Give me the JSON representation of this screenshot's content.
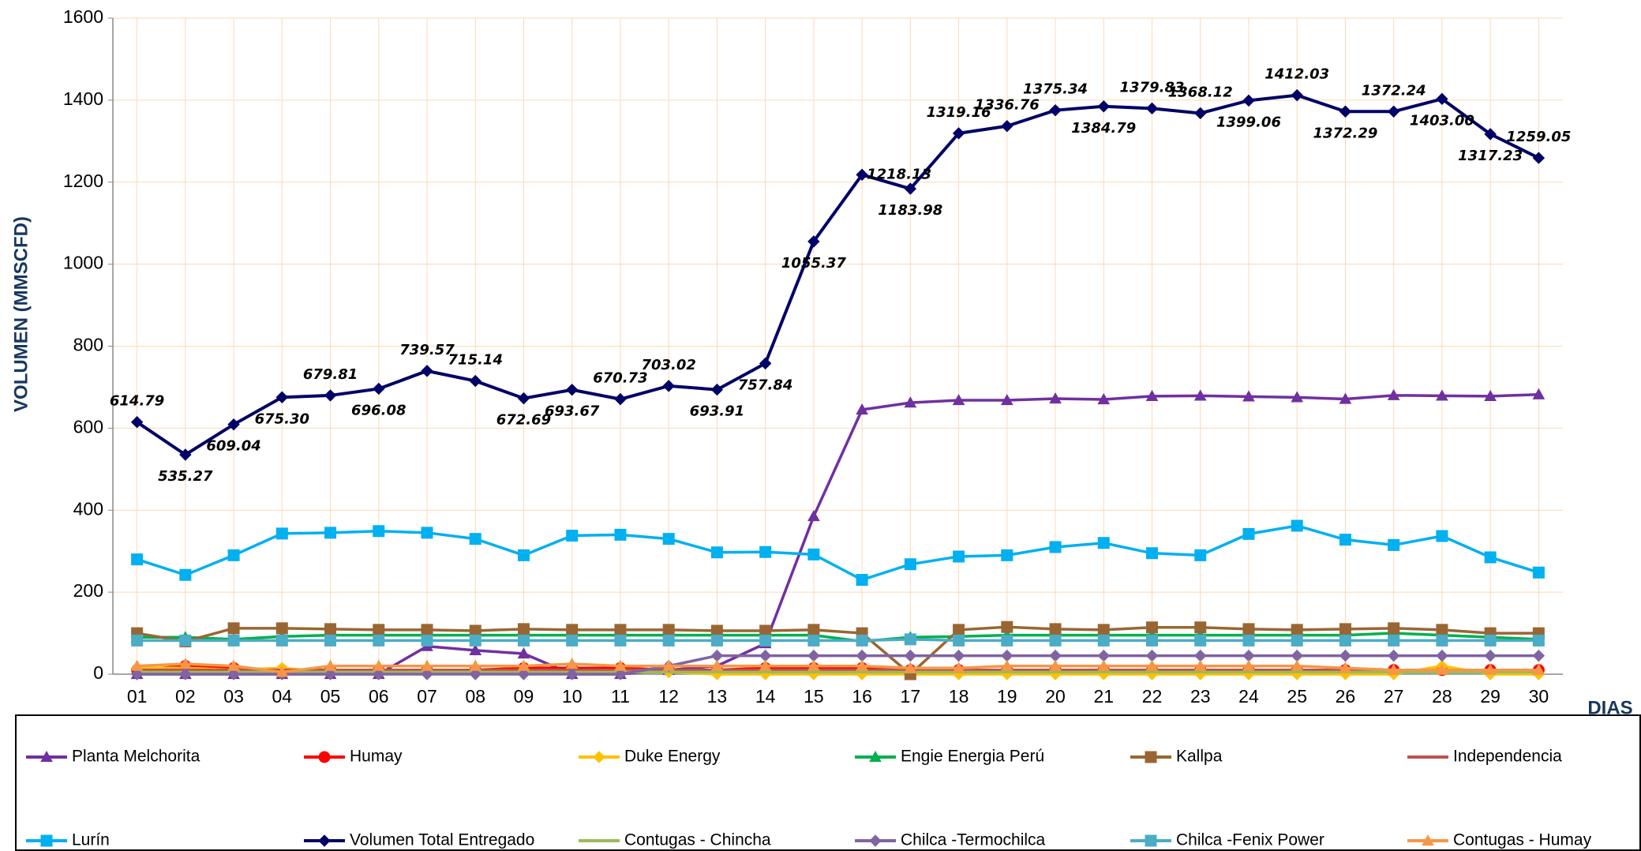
{
  "chart_data": {
    "type": "line",
    "y_label": "VOLUMEN (MMSCFD)",
    "x_label": "DIAS",
    "categories": [
      "01",
      "02",
      "03",
      "04",
      "05",
      "06",
      "07",
      "08",
      "09",
      "10",
      "11",
      "12",
      "13",
      "14",
      "15",
      "16",
      "17",
      "18",
      "19",
      "20",
      "21",
      "22",
      "23",
      "24",
      "25",
      "26",
      "27",
      "28",
      "29",
      "30"
    ],
    "ylim": [
      0,
      1600
    ],
    "yticks": [
      0,
      200,
      400,
      600,
      800,
      1000,
      1200,
      1400,
      1600
    ],
    "grid": true,
    "series": [
      {
        "name": "Planta Melchorita",
        "color": "#7030a0",
        "marker": "triangle",
        "values": [
          0,
          0,
          0,
          0,
          0,
          0,
          68,
          58,
          50,
          0,
          0,
          10,
          20,
          75,
          385,
          645,
          662,
          668,
          668,
          672,
          670,
          678,
          679,
          677,
          675,
          671,
          680,
          679,
          678,
          682
        ]
      },
      {
        "name": "Humay",
        "color": "#ff0000",
        "marker": "circle",
        "values": [
          10,
          20,
          15,
          10,
          10,
          10,
          10,
          10,
          15,
          15,
          15,
          10,
          10,
          15,
          15,
          15,
          10,
          10,
          10,
          10,
          10,
          10,
          10,
          10,
          10,
          10,
          10,
          10,
          10,
          10
        ]
      },
      {
        "name": "Duke Energy",
        "color": "#ffc000",
        "marker": "diamond",
        "values": [
          15,
          15,
          10,
          15,
          5,
          5,
          5,
          5,
          5,
          5,
          5,
          5,
          0,
          0,
          0,
          0,
          0,
          0,
          0,
          0,
          0,
          0,
          0,
          0,
          0,
          0,
          0,
          20,
          0,
          0
        ]
      },
      {
        "name": "Engie Energia Perú",
        "color": "#00b050",
        "marker": "triangle",
        "values": [
          90,
          90,
          85,
          92,
          95,
          95,
          95,
          95,
          95,
          95,
          95,
          95,
          95,
          95,
          95,
          80,
          90,
          92,
          95,
          95,
          95,
          95,
          95,
          95,
          95,
          95,
          100,
          95,
          90,
          85
        ]
      },
      {
        "name": "Kallpa",
        "color": "#996633",
        "marker": "square",
        "values": [
          100,
          80,
          112,
          112,
          110,
          108,
          108,
          106,
          110,
          108,
          108,
          108,
          106,
          106,
          108,
          100,
          0,
          108,
          115,
          110,
          108,
          114,
          114,
          110,
          108,
          110,
          112,
          108,
          100,
          100
        ]
      },
      {
        "name": "Independencia",
        "color": "#c0504d",
        "marker": "none",
        "values": [
          10,
          10,
          10,
          10,
          10,
          10,
          10,
          10,
          10,
          10,
          10,
          10,
          10,
          10,
          10,
          10,
          10,
          10,
          10,
          10,
          10,
          10,
          10,
          10,
          10,
          10,
          10,
          10,
          10,
          10
        ]
      },
      {
        "name": "Lurín",
        "color": "#00b0f0",
        "marker": "square",
        "values": [
          280,
          242,
          290,
          343,
          345,
          349,
          345,
          330,
          290,
          338,
          340,
          330,
          297,
          298,
          292,
          230,
          268,
          287,
          290,
          310,
          320,
          295,
          290,
          342,
          362,
          328,
          315,
          337,
          285,
          248
        ]
      },
      {
        "name": "Volumen Total Entregado",
        "color": "#000066",
        "marker": "diamond",
        "values": [
          614.79,
          535.27,
          609.04,
          675.3,
          679.81,
          696.08,
          739.57,
          715.14,
          672.69,
          693.67,
          670.73,
          703.02,
          693.91,
          757.84,
          1055.37,
          1218.13,
          1183.98,
          1319.16,
          1336.76,
          1375.34,
          1384.79,
          1379.83,
          1368.12,
          1399.06,
          1412.03,
          1372.29,
          1372.24,
          1403.0,
          1317.23,
          1259.05
        ],
        "value_labels": [
          "614.79",
          "535.27",
          "609.04",
          "675.30",
          "679.81",
          "696.08",
          "739.57",
          "715.14",
          "672.69",
          "693.67",
          "670.73",
          "703.02",
          "693.91",
          "757.84",
          "1055.37",
          "1218.13",
          "1183.98",
          "1319.16",
          "1336.76",
          "1375.34",
          "1384.79",
          "1379.83",
          "1368.12",
          "1399.06",
          "1412.03",
          "1372.29",
          "1372.24",
          "1403.00",
          "1317.23",
          "1259.05"
        ]
      },
      {
        "name": "Contugas - Chincha",
        "color": "#9bbb59",
        "marker": "none",
        "values": [
          5,
          5,
          5,
          5,
          5,
          5,
          5,
          5,
          5,
          5,
          5,
          5,
          5,
          5,
          5,
          5,
          5,
          5,
          5,
          5,
          5,
          5,
          5,
          5,
          5,
          5,
          5,
          5,
          5,
          5
        ]
      },
      {
        "name": "Chilca -Termochilca",
        "color": "#8064a2",
        "marker": "diamond",
        "values": [
          0,
          0,
          0,
          0,
          0,
          0,
          0,
          0,
          0,
          0,
          0,
          20,
          45,
          45,
          45,
          45,
          45,
          45,
          45,
          45,
          45,
          45,
          45,
          45,
          45,
          45,
          45,
          45,
          45,
          45
        ]
      },
      {
        "name": "Chilca -Fenix Power",
        "color": "#4bacc6",
        "marker": "square",
        "values": [
          82,
          82,
          82,
          82,
          82,
          82,
          82,
          82,
          82,
          82,
          82,
          82,
          82,
          82,
          82,
          82,
          85,
          82,
          82,
          82,
          82,
          82,
          82,
          82,
          82,
          82,
          82,
          82,
          82,
          82
        ]
      },
      {
        "name": "Contugas - Humay",
        "color": "#f79646",
        "marker": "triangle",
        "values": [
          20,
          25,
          20,
          5,
          20,
          20,
          20,
          20,
          20,
          25,
          20,
          20,
          20,
          20,
          20,
          20,
          15,
          15,
          20,
          20,
          20,
          20,
          20,
          20,
          20,
          15,
          10,
          10,
          10,
          10
        ]
      }
    ]
  }
}
